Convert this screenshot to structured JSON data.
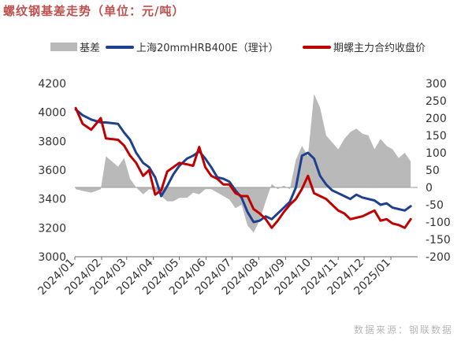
{
  "title": "螺纹钢基差走势（单位：元/吨）",
  "watermark": "数据来源：钢联数据",
  "colors": {
    "basis": "#b9b9b9",
    "spot": "#1f3f8f",
    "futures": "#c00000",
    "title": "#c0504d"
  },
  "chart_data": {
    "type": "line",
    "legend_placement": "top",
    "grid": false,
    "x_ticks": [
      "2024/01",
      "2024/02",
      "2024/03",
      "2024/04",
      "2024/05",
      "2024/06",
      "2024/07",
      "2024/08",
      "2024/09",
      "2024/10",
      "2024/11",
      "2024/12",
      "2025/01"
    ],
    "y_left": {
      "range": [
        3000,
        4200
      ],
      "ticks": [
        3000,
        3200,
        3400,
        3600,
        3800,
        4000,
        4200
      ]
    },
    "y_right": {
      "range": [
        -200,
        300
      ],
      "ticks": [
        -200,
        -150,
        -100,
        -50,
        0,
        50,
        100,
        150,
        200,
        250,
        300
      ]
    },
    "series": [
      {
        "name": "基差",
        "type": "area",
        "axis": "right",
        "x": [
          "2024/01/02",
          "2024/01/10",
          "2024/01/20",
          "2024/01/31",
          "2024/02/06",
          "2024/02/20",
          "2024/02/27",
          "2024/03/05",
          "2024/03/12",
          "2024/03/20",
          "2024/03/27",
          "2024/04/03",
          "2024/04/10",
          "2024/04/17",
          "2024/04/24",
          "2024/05/01",
          "2024/05/10",
          "2024/05/17",
          "2024/05/24",
          "2024/05/31",
          "2024/06/07",
          "2024/06/14",
          "2024/06/21",
          "2024/06/28",
          "2024/07/05",
          "2024/07/12",
          "2024/07/19",
          "2024/07/26",
          "2024/08/02",
          "2024/08/09",
          "2024/08/16",
          "2024/08/23",
          "2024/08/30",
          "2024/09/06",
          "2024/09/13",
          "2024/09/20",
          "2024/09/27",
          "2024/10/04",
          "2024/10/11",
          "2024/10/18",
          "2024/10/25",
          "2024/11/01",
          "2024/11/08",
          "2024/11/15",
          "2024/11/22",
          "2024/11/29",
          "2024/12/06",
          "2024/12/13",
          "2024/12/20",
          "2024/12/27",
          "2025/01/03",
          "2025/01/10",
          "2025/01/17",
          "2025/01/24"
        ],
        "values": [
          -5,
          -10,
          -15,
          -5,
          90,
          60,
          85,
          25,
          0,
          -20,
          -5,
          -10,
          -25,
          -40,
          -40,
          -30,
          -30,
          -15,
          -20,
          -5,
          -5,
          -15,
          -25,
          -35,
          -60,
          -50,
          -110,
          -130,
          -95,
          -40,
          10,
          -5,
          5,
          -5,
          80,
          120,
          90,
          270,
          230,
          150,
          130,
          110,
          140,
          160,
          170,
          155,
          150,
          110,
          140,
          120,
          110,
          85,
          100,
          75
        ]
      },
      {
        "name": "上海20mmHRB400E（理计）",
        "type": "line",
        "axis": "left",
        "x": [
          "2024/01/02",
          "2024/01/10",
          "2024/01/20",
          "2024/01/31",
          "2024/02/06",
          "2024/02/20",
          "2024/02/27",
          "2024/03/05",
          "2024/03/12",
          "2024/03/20",
          "2024/03/27",
          "2024/04/03",
          "2024/04/10",
          "2024/04/17",
          "2024/04/24",
          "2024/05/01",
          "2024/05/10",
          "2024/05/17",
          "2024/05/24",
          "2024/05/31",
          "2024/06/07",
          "2024/06/14",
          "2024/06/21",
          "2024/06/28",
          "2024/07/05",
          "2024/07/12",
          "2024/07/19",
          "2024/07/26",
          "2024/08/02",
          "2024/08/09",
          "2024/08/16",
          "2024/08/23",
          "2024/08/30",
          "2024/09/06",
          "2024/09/13",
          "2024/09/20",
          "2024/09/27",
          "2024/10/04",
          "2024/10/11",
          "2024/10/18",
          "2024/10/25",
          "2024/11/01",
          "2024/11/08",
          "2024/11/15",
          "2024/11/22",
          "2024/11/29",
          "2024/12/06",
          "2024/12/13",
          "2024/12/20",
          "2024/12/27",
          "2025/01/03",
          "2025/01/10",
          "2025/01/17",
          "2025/01/24"
        ],
        "values": [
          4020,
          3980,
          3950,
          3930,
          3930,
          3920,
          3860,
          3810,
          3720,
          3650,
          3620,
          3550,
          3420,
          3490,
          3570,
          3630,
          3680,
          3700,
          3730,
          3680,
          3620,
          3550,
          3540,
          3520,
          3460,
          3410,
          3310,
          3240,
          3250,
          3280,
          3260,
          3300,
          3340,
          3380,
          3480,
          3700,
          3720,
          3680,
          3560,
          3500,
          3460,
          3440,
          3420,
          3400,
          3430,
          3410,
          3400,
          3390,
          3360,
          3370,
          3340,
          3330,
          3320,
          3350
        ]
      },
      {
        "name": "期螺主力合约收盘价",
        "type": "line",
        "axis": "left",
        "x": [
          "2024/01/02",
          "2024/01/10",
          "2024/01/20",
          "2024/01/31",
          "2024/02/06",
          "2024/02/20",
          "2024/02/27",
          "2024/03/05",
          "2024/03/12",
          "2024/03/20",
          "2024/03/27",
          "2024/04/03",
          "2024/04/10",
          "2024/04/17",
          "2024/04/24",
          "2024/05/01",
          "2024/05/10",
          "2024/05/17",
          "2024/05/24",
          "2024/05/31",
          "2024/06/07",
          "2024/06/14",
          "2024/06/21",
          "2024/06/28",
          "2024/07/05",
          "2024/07/12",
          "2024/07/19",
          "2024/07/26",
          "2024/08/02",
          "2024/08/09",
          "2024/08/16",
          "2024/08/23",
          "2024/08/30",
          "2024/09/06",
          "2024/09/13",
          "2024/09/20",
          "2024/09/27",
          "2024/10/04",
          "2024/10/11",
          "2024/10/18",
          "2024/10/25",
          "2024/11/01",
          "2024/11/08",
          "2024/11/15",
          "2024/11/22",
          "2024/11/29",
          "2024/12/06",
          "2024/12/13",
          "2024/12/20",
          "2024/12/27",
          "2025/01/03",
          "2025/01/10",
          "2025/01/17",
          "2025/01/24"
        ],
        "values": [
          4030,
          3920,
          3880,
          3960,
          3820,
          3810,
          3770,
          3700,
          3650,
          3560,
          3600,
          3430,
          3460,
          3590,
          3620,
          3650,
          3640,
          3630,
          3760,
          3620,
          3560,
          3540,
          3500,
          3500,
          3440,
          3420,
          3420,
          3330,
          3300,
          3260,
          3200,
          3250,
          3310,
          3360,
          3400,
          3470,
          3560,
          3440,
          3420,
          3400,
          3360,
          3320,
          3300,
          3260,
          3270,
          3280,
          3300,
          3320,
          3250,
          3260,
          3230,
          3220,
          3200,
          3260
        ]
      }
    ]
  }
}
